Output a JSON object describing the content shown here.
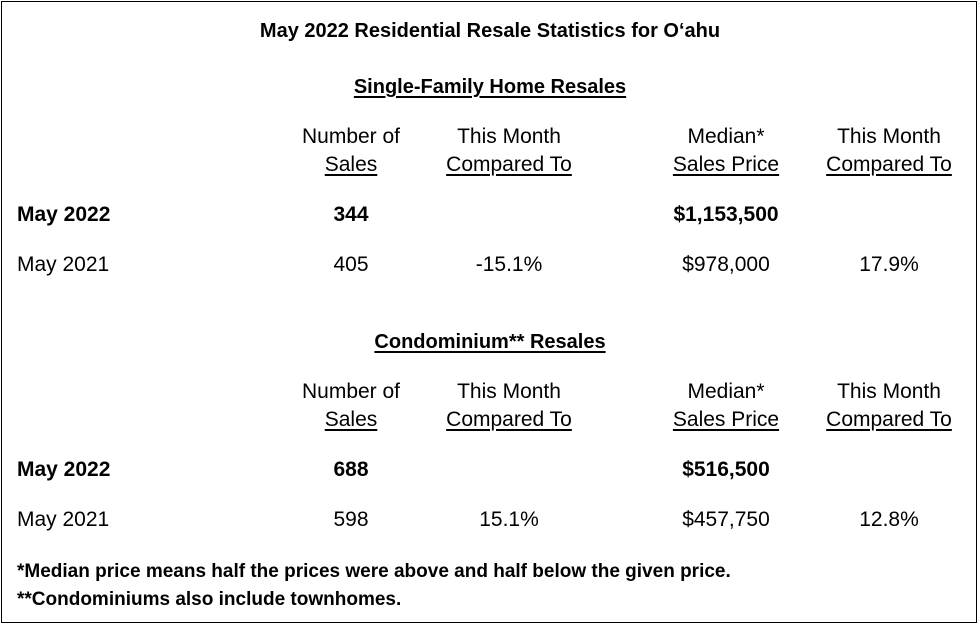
{
  "title": "May 2022 Residential Resale Statistics for O‘ahu",
  "sections": [
    {
      "title": "Single-Family Home Resales",
      "headers": {
        "number_line1": "Number of",
        "number_line2": "Sales",
        "compare1_line1": "This Month",
        "compare1_line2": "Compared To",
        "median_line1": "Median*",
        "median_line2": "Sales Price",
        "compare2_line1": "This Month",
        "compare2_line2": "Compared To"
      },
      "rows": [
        {
          "label": "May 2022",
          "sales": "344",
          "sales_change": "",
          "median": "$1,153,500",
          "median_change": ""
        },
        {
          "label": "May 2021",
          "sales": "405",
          "sales_change": "-15.1%",
          "median": "$978,000",
          "median_change": "17.9%"
        }
      ]
    },
    {
      "title": "Condominium** Resales",
      "headers": {
        "number_line1": "Number of",
        "number_line2": "Sales",
        "compare1_line1": "This Month",
        "compare1_line2": "Compared To",
        "median_line1": "Median*",
        "median_line2": "Sales Price",
        "compare2_line1": "This Month",
        "compare2_line2": "Compared To"
      },
      "rows": [
        {
          "label": "May 2022",
          "sales": "688",
          "sales_change": "",
          "median": "$516,500",
          "median_change": ""
        },
        {
          "label": "May 2021",
          "sales": "598",
          "sales_change": "15.1%",
          "median": "$457,750",
          "median_change": "12.8%"
        }
      ]
    }
  ],
  "footnotes": [
    "*Median price means half the prices were above and half below the given price.",
    "**Condominiums also include townhomes."
  ]
}
